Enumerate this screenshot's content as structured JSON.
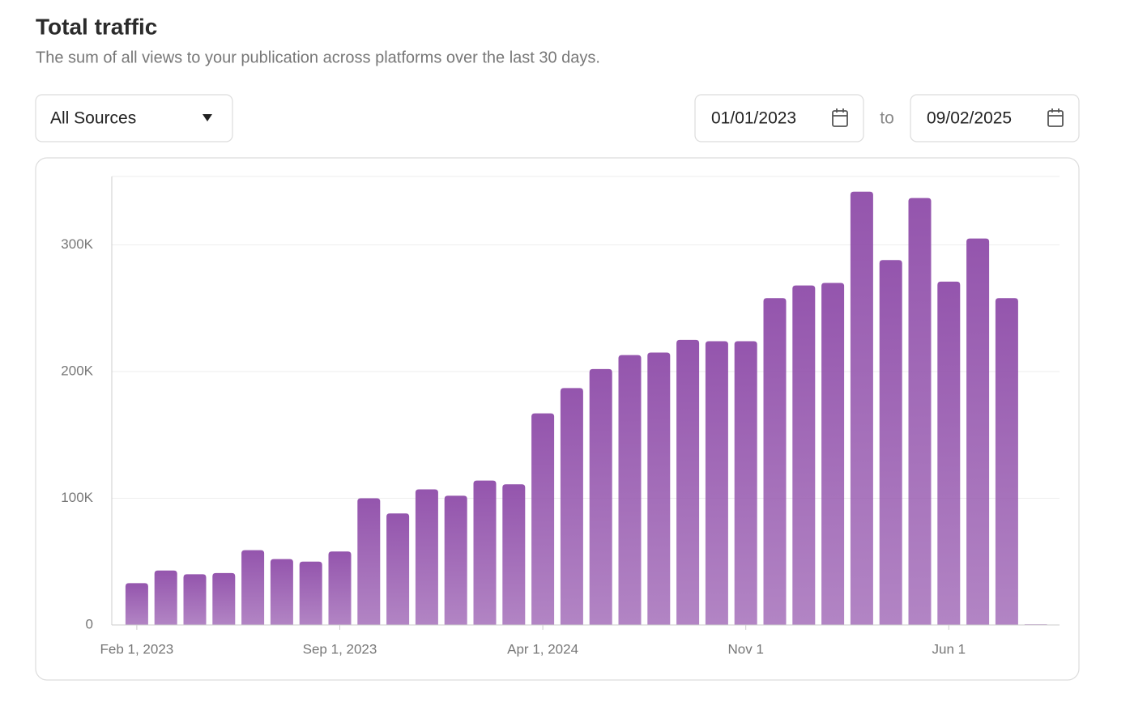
{
  "header": {
    "title": "Total traffic",
    "subtitle": "The sum of all views to your publication across platforms over the last 30 days."
  },
  "controls": {
    "source": "All Sources",
    "start_date": "01/01/2023",
    "separator": "to",
    "end_date": "09/02/2025"
  },
  "chart_data": {
    "type": "bar",
    "categories": [
      "Feb 1, 2023",
      null,
      null,
      null,
      null,
      null,
      null,
      "Sep 1, 2023",
      null,
      null,
      null,
      null,
      null,
      null,
      "Apr 1, 2024",
      null,
      null,
      null,
      null,
      null,
      null,
      "Nov 1",
      null,
      null,
      null,
      null,
      null,
      null,
      "Jun 1",
      null,
      null,
      null
    ],
    "values": [
      33000,
      43000,
      40000,
      41000,
      59000,
      52000,
      50000,
      58000,
      100000,
      88000,
      107000,
      102000,
      114000,
      111000,
      167000,
      187000,
      202000,
      213000,
      215000,
      225000,
      224000,
      224000,
      258000,
      268000,
      270000,
      342000,
      288000,
      337000,
      271000,
      305000,
      258000,
      500
    ],
    "color": "#9455ad",
    "ylim": [
      0,
      354000
    ],
    "yticks": [
      0,
      {
        "value": 100000,
        "label": "100K"
      },
      {
        "value": 200000,
        "label": "200K"
      },
      {
        "value": 300000,
        "label": "300K"
      }
    ],
    "grid": true
  }
}
